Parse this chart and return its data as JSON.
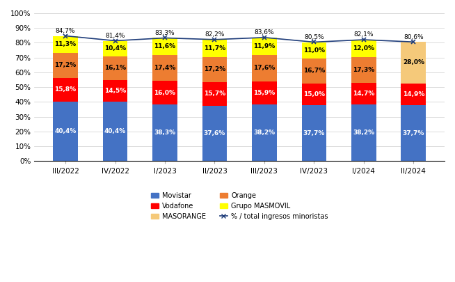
{
  "categories": [
    "III/2022",
    "IV/2022",
    "I/2023",
    "II/2023",
    "III/2023",
    "IV/2023",
    "I/2024",
    "II/2024"
  ],
  "movistar": [
    40.4,
    40.4,
    38.3,
    37.6,
    38.2,
    37.7,
    38.2,
    37.7
  ],
  "vodafone": [
    15.8,
    14.5,
    16.0,
    15.7,
    15.9,
    15.0,
    14.7,
    14.9
  ],
  "orange": [
    17.2,
    16.1,
    17.4,
    17.2,
    17.6,
    16.7,
    17.3,
    0.0
  ],
  "masorange": [
    0.0,
    0.0,
    0.0,
    0.0,
    0.0,
    0.0,
    0.0,
    28.0
  ],
  "grupo_masmovil": [
    11.3,
    10.4,
    11.6,
    11.7,
    11.9,
    11.0,
    12.0,
    0.0
  ],
  "line_values": [
    84.7,
    81.4,
    83.3,
    82.2,
    83.6,
    80.5,
    82.1,
    80.6
  ],
  "movistar_color": "#4472C4",
  "vodafone_color": "#FF0000",
  "orange_color": "#ED7D31",
  "masorange_color": "#F5C97A",
  "grupo_masmovil_color": "#FFFF00",
  "line_color": "#1F3D7A",
  "movistar_labels": [
    "40,4%",
    "40,4%",
    "38,3%",
    "37,6%",
    "38,2%",
    "37,7%",
    "38,2%",
    "37,7%"
  ],
  "vodafone_labels": [
    "15,8%",
    "14,5%",
    "16,0%",
    "15,7%",
    "15,9%",
    "15,0%",
    "14,7%",
    "14,9%"
  ],
  "orange_labels": [
    "17,2%",
    "16,1%",
    "17,4%",
    "17,2%",
    "17,6%",
    "16,7%",
    "17,3%",
    ""
  ],
  "masorange_labels": [
    "",
    "",
    "",
    "",
    "",
    "",
    "",
    "28,0%"
  ],
  "grupo_masmovil_labels": [
    "11,3%",
    "10,4%",
    "11,6%",
    "11,7%",
    "11,9%",
    "11,0%",
    "12,0%",
    ""
  ],
  "line_labels": [
    "84,7%",
    "81,4%",
    "83,3%",
    "82,2%",
    "83,6%",
    "80,5%",
    "82,1%",
    "80,6%"
  ],
  "ylim": [
    0,
    100
  ],
  "yticks": [
    0,
    10,
    20,
    30,
    40,
    50,
    60,
    70,
    80,
    90,
    100
  ],
  "ytick_labels": [
    "0%",
    "10%",
    "20%",
    "30%",
    "40%",
    "50%",
    "60%",
    "70%",
    "80%",
    "90%",
    "100%"
  ],
  "legend_labels": [
    "Movistar",
    "Vodafone",
    "MASORANGE",
    "Orange",
    "Grupo MASMOVIL",
    "% / total ingresos minoristas"
  ],
  "label_fontsize": 6.5,
  "axis_fontsize": 7.5
}
